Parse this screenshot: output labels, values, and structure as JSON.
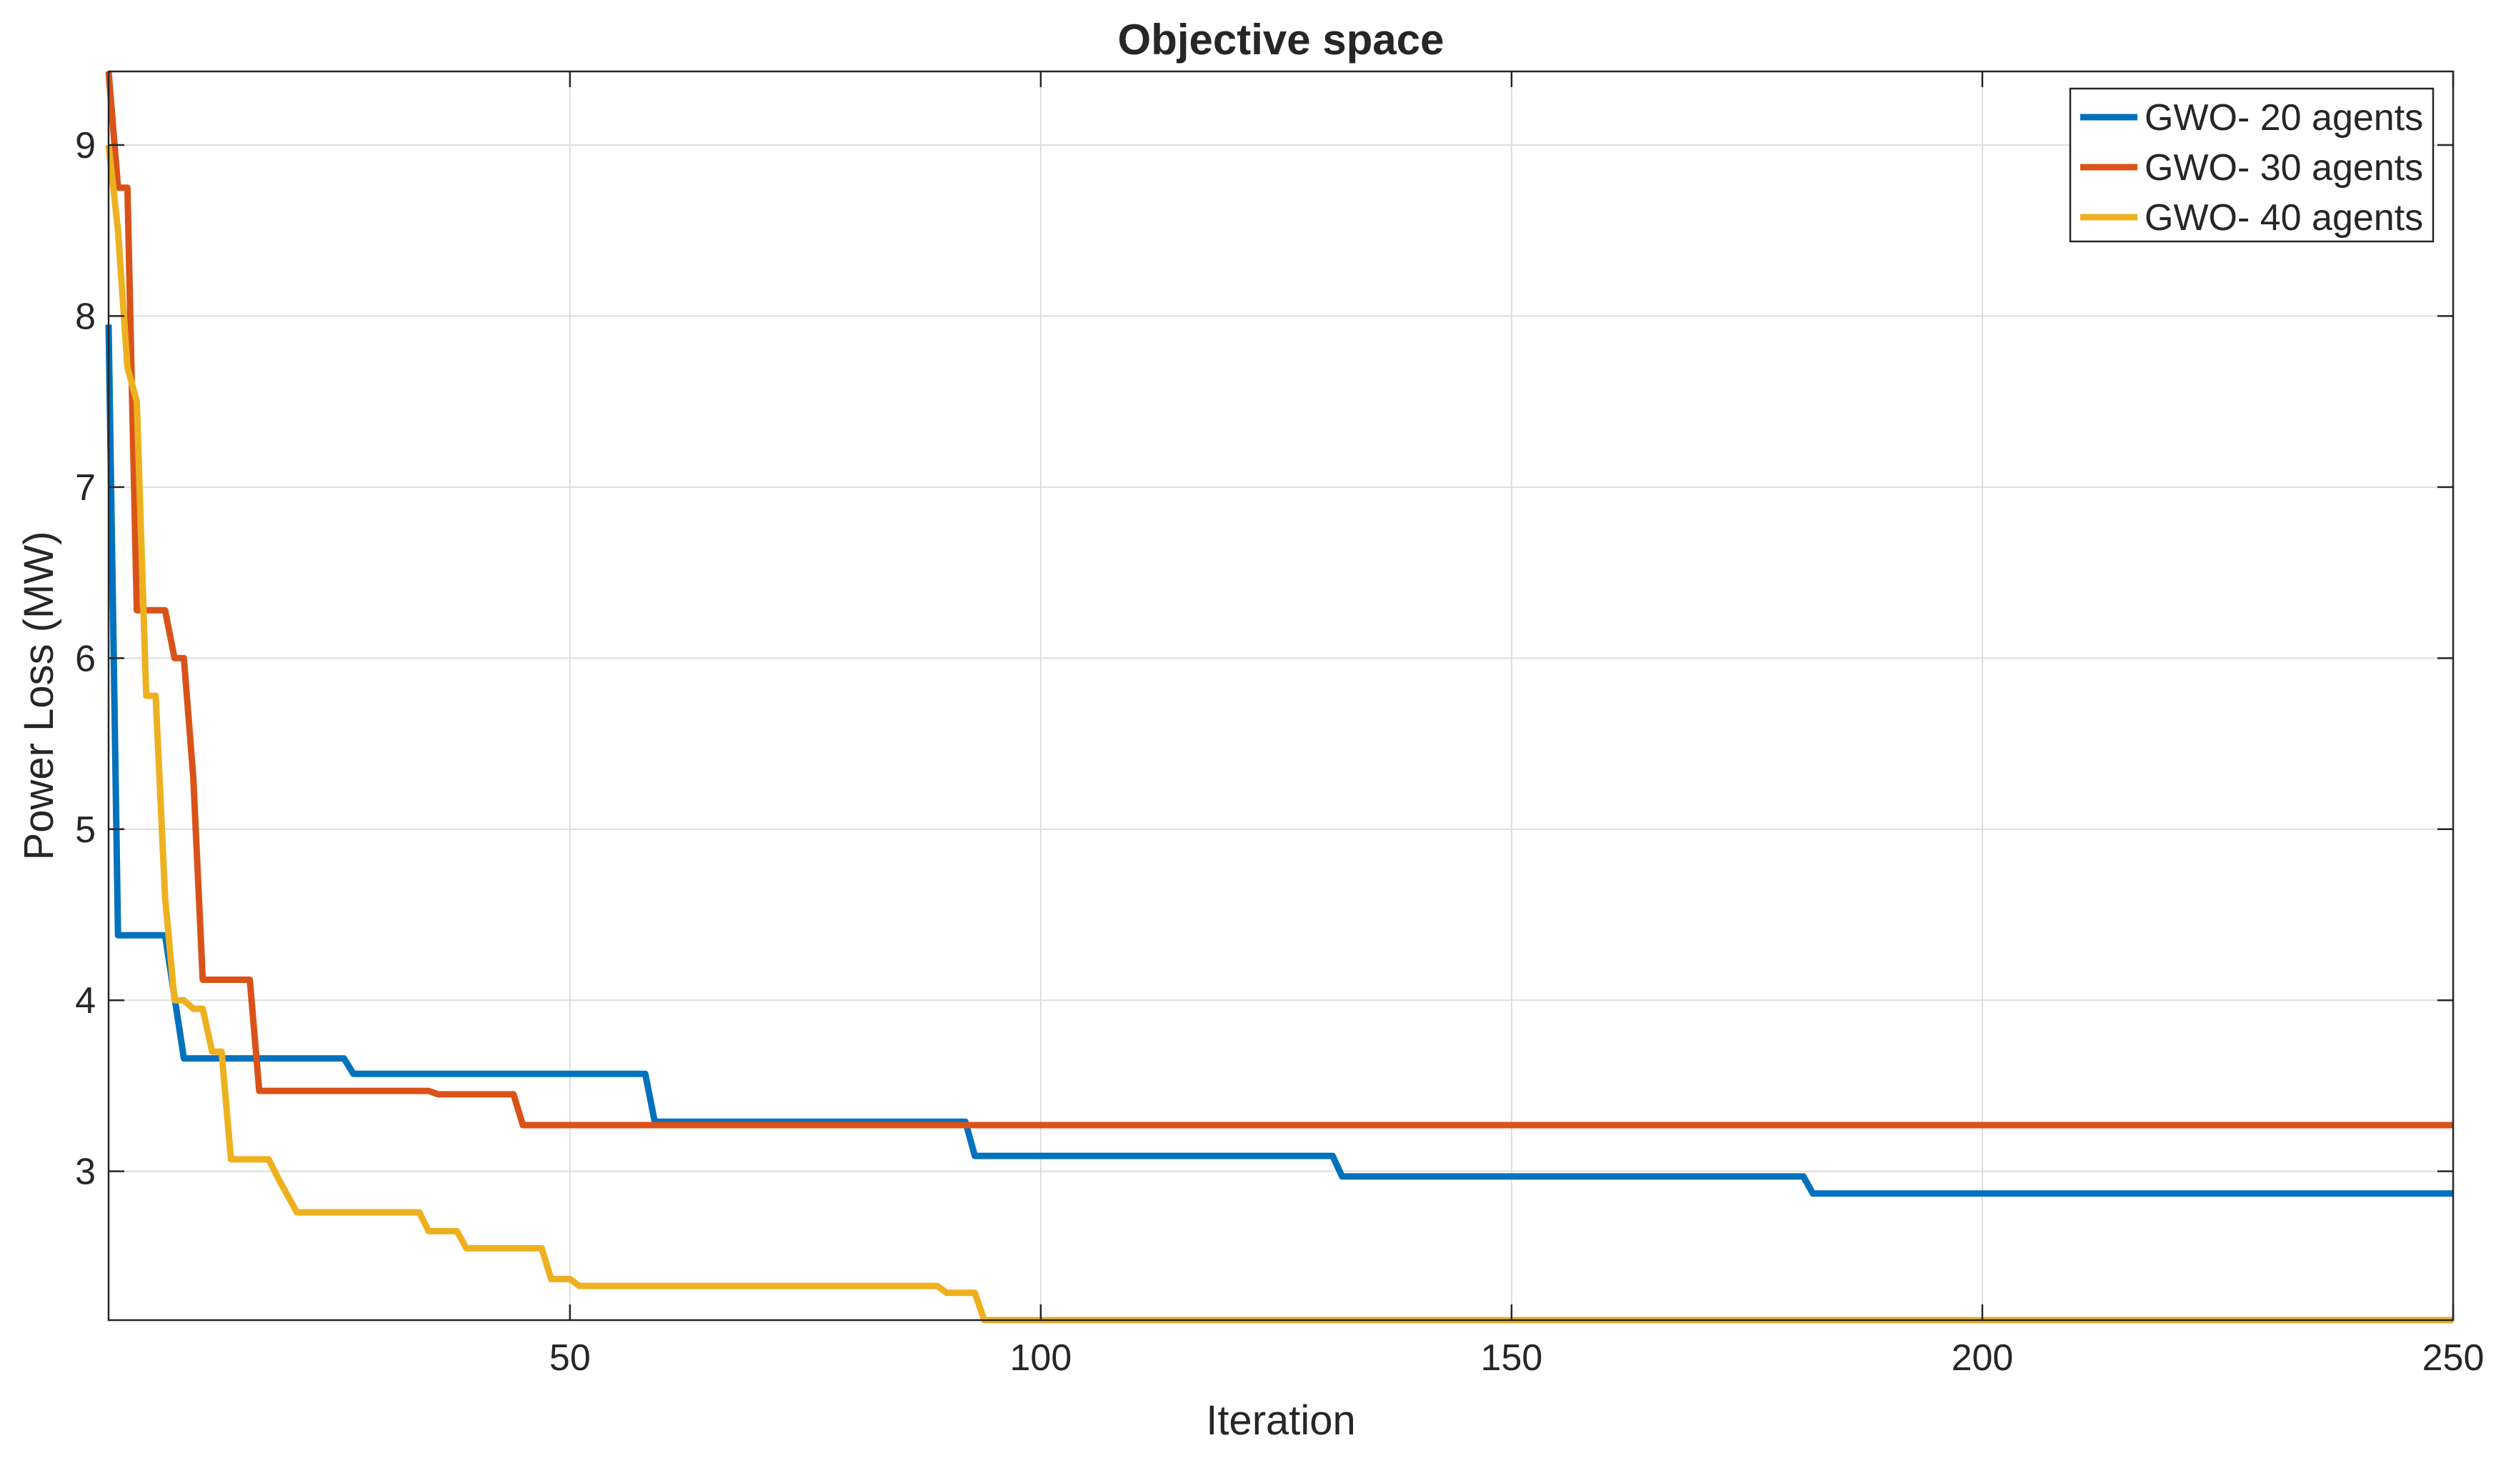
{
  "chart_data": {
    "type": "line",
    "title": "Objective space",
    "xlabel": "Iteration",
    "ylabel": "Power Loss (MW)",
    "xlim": [
      1,
      250
    ],
    "ylim": [
      2.13,
      9.43
    ],
    "xticks": [
      50,
      100,
      150,
      200,
      250
    ],
    "yticks": [
      3,
      4,
      5,
      6,
      7,
      8,
      9
    ],
    "grid": true,
    "legend_position": "top-right",
    "series": [
      {
        "name": "GWO- 20 agents",
        "color": "#0072BD",
        "x": [
          1,
          2,
          7,
          9,
          26,
          27,
          58,
          59,
          92,
          93,
          131,
          132,
          181,
          182,
          250
        ],
        "y": [
          7.95,
          4.38,
          4.38,
          3.66,
          3.66,
          3.57,
          3.57,
          3.29,
          3.29,
          3.09,
          3.09,
          2.97,
          2.97,
          2.87,
          2.87
        ]
      },
      {
        "name": "GWO- 30 agents",
        "color": "#D95319",
        "x": [
          1,
          2,
          3,
          4,
          7,
          8,
          9,
          10,
          11,
          12,
          16,
          17,
          35,
          36,
          44,
          45,
          250
        ],
        "y": [
          9.43,
          8.75,
          8.75,
          6.28,
          6.28,
          6.0,
          6.0,
          5.3,
          4.12,
          4.12,
          4.12,
          3.47,
          3.47,
          3.45,
          3.45,
          3.27,
          3.27
        ]
      },
      {
        "name": "GWO- 40 agents",
        "color": "#EDB120",
        "x": [
          1,
          2,
          3,
          4,
          5,
          6,
          7,
          8,
          9,
          10,
          11,
          12,
          13,
          14,
          18,
          19,
          21,
          34,
          35,
          38,
          39,
          47,
          48,
          50,
          51,
          89,
          90,
          93,
          94,
          250
        ],
        "y": [
          9.0,
          8.5,
          7.7,
          7.5,
          5.78,
          5.78,
          4.6,
          4.0,
          4.0,
          3.95,
          3.95,
          3.7,
          3.7,
          3.07,
          3.07,
          2.96,
          2.76,
          2.76,
          2.65,
          2.65,
          2.55,
          2.55,
          2.37,
          2.37,
          2.33,
          2.33,
          2.29,
          2.29,
          2.13,
          2.13
        ]
      }
    ]
  }
}
